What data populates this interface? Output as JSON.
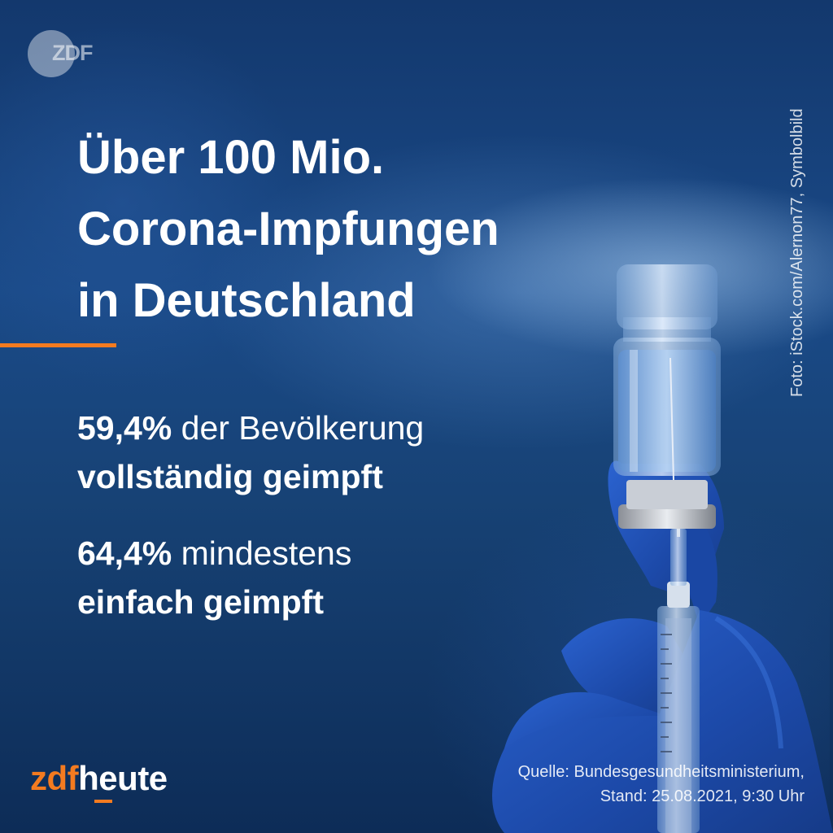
{
  "logo": {
    "text": "ZDF"
  },
  "headline": {
    "line1": "Über 100 Mio.",
    "line2": "Corona-Impfungen",
    "line3": "in Deutschland"
  },
  "stats": [
    {
      "value": "59,4%",
      "rest": " der Bevölkerung",
      "line2": "vollständig geimpft"
    },
    {
      "value": "64,4%",
      "rest": " mindestens",
      "line2": "einfach geimpft"
    }
  ],
  "photo_credit": "Foto: iStock.com/Alernon77, Symbolbild",
  "brand": {
    "zdf": "zdf",
    "heute": "heute"
  },
  "source": {
    "line1": "Quelle: Bundesgesundheitsministerium,",
    "line2": "Stand: 25.08.2021, 9:30 Uhr"
  },
  "colors": {
    "background": "#13386d",
    "accent_orange": "#f47b20",
    "glove_blue": "#1f4fb8",
    "text": "#ffffff"
  },
  "icons": [
    "zdf-logo",
    "vaccine-vial",
    "syringe",
    "glove-hand"
  ]
}
